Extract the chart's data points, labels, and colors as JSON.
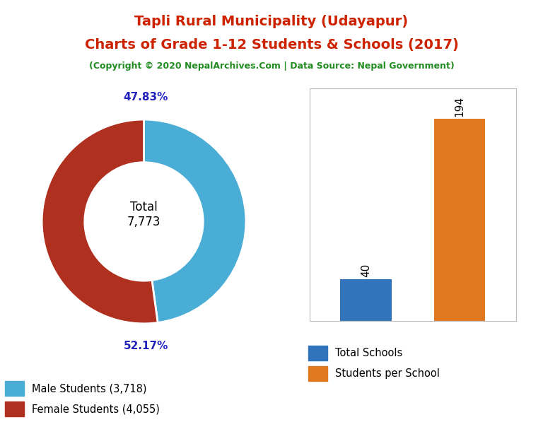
{
  "title_line1": "Tapli Rural Municipality (Udayapur)",
  "title_line2": "Charts of Grade 1-12 Students & Schools (2017)",
  "subtitle": "(Copyright © 2020 NepalArchives.Com | Data Source: Nepal Government)",
  "title_color": "#cc2200",
  "subtitle_color": "#228B22",
  "donut_values": [
    3718,
    4055
  ],
  "donut_labels": [
    "47.83%",
    "52.17%"
  ],
  "donut_colors": [
    "#4aadd6",
    "#b03020"
  ],
  "donut_total_label": "Total\n7,773",
  "legend_donut": [
    "Male Students (3,718)",
    "Female Students (4,055)"
  ],
  "bar_values": [
    40,
    194
  ],
  "bar_colors": [
    "#3274bc",
    "#e07820"
  ],
  "bar_labels": [
    "Total Schools",
    "Students per School"
  ],
  "background_color": "#ffffff"
}
